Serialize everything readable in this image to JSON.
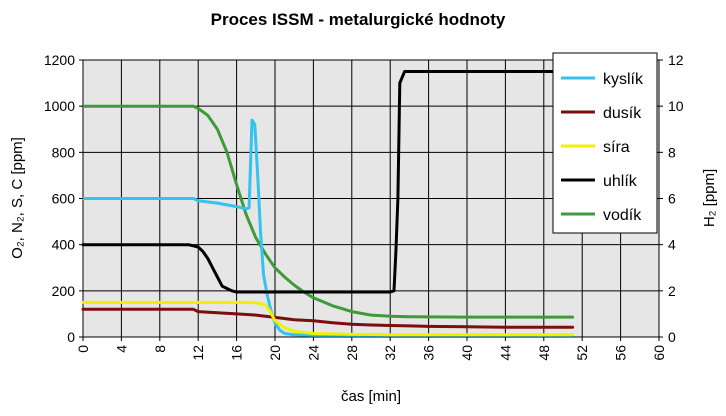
{
  "chart_data": {
    "type": "line",
    "title": "Proces ISSM - metalurgické hodnoty",
    "xlabel": "čas [min]",
    "ylabel": "O₂, N₂, S, C [ppm]",
    "y2label": "H₂ [ppm]",
    "xlim": [
      0,
      60
    ],
    "ylim": [
      0,
      1200
    ],
    "y2lim": [
      0,
      12
    ],
    "xticks": [
      "0",
      "4",
      "8",
      "12",
      "16",
      "20",
      "24",
      "28",
      "32",
      "36",
      "40",
      "44",
      "48",
      "52",
      "56",
      "60"
    ],
    "yticks": [
      "0",
      "200",
      "400",
      "600",
      "800",
      "1000",
      "1200"
    ],
    "y2ticks": [
      "0",
      "2",
      "4",
      "6",
      "8",
      "10",
      "12"
    ],
    "grid": true,
    "background": "#e6e6e6",
    "legend_position": "top-right",
    "series": [
      {
        "name": "kyslík",
        "color": "#33c3ee",
        "axis": "left",
        "x": [
          0,
          11.5,
          12,
          14,
          16,
          17,
          17.3,
          17.6,
          17.9,
          18.2,
          18.5,
          18.8,
          19.2,
          19.6,
          20,
          20.5,
          21,
          22,
          24,
          28,
          32,
          40,
          51
        ],
        "y": [
          600,
          600,
          590,
          580,
          565,
          555,
          560,
          940,
          920,
          700,
          450,
          270,
          180,
          110,
          60,
          30,
          15,
          10,
          8,
          8,
          8,
          8,
          8
        ]
      },
      {
        "name": "dusík",
        "color": "#7b0e0e",
        "axis": "left",
        "x": [
          0,
          11.5,
          12,
          14,
          16,
          18,
          20,
          22,
          24,
          26,
          28,
          30,
          32,
          34,
          36,
          40,
          44,
          51
        ],
        "y": [
          120,
          120,
          110,
          105,
          100,
          95,
          85,
          75,
          70,
          62,
          55,
          52,
          50,
          48,
          46,
          44,
          42,
          42
        ]
      },
      {
        "name": "síra",
        "color": "#f0f000",
        "axis": "left",
        "x": [
          0,
          11.5,
          12,
          17,
          18,
          19,
          19.5,
          20,
          21,
          22,
          24,
          28,
          32,
          40,
          51
        ],
        "y": [
          150,
          150,
          150,
          150,
          148,
          140,
          110,
          70,
          40,
          25,
          15,
          12,
          10,
          10,
          10
        ]
      },
      {
        "name": "uhlík",
        "color": "#000000",
        "axis": "left",
        "x": [
          0,
          11,
          12,
          12.5,
          13,
          13.5,
          14,
          14.5,
          15,
          15.5,
          16,
          18,
          20,
          24,
          28,
          32,
          32.4,
          32.6,
          32.8,
          33,
          33.5,
          34,
          40,
          44,
          48,
          51
        ],
        "y": [
          400,
          400,
          390,
          370,
          340,
          300,
          260,
          220,
          210,
          200,
          195,
          195,
          195,
          195,
          195,
          195,
          200,
          380,
          600,
          1100,
          1150,
          1150,
          1150,
          1150,
          1150,
          1150
        ]
      },
      {
        "name": "vodík",
        "color": "#3f9a3a",
        "axis": "right",
        "x": [
          0,
          11.5,
          12,
          13,
          14,
          15,
          16,
          17,
          18,
          19,
          20,
          21,
          22,
          23,
          24,
          26,
          28,
          30,
          32,
          34,
          36,
          40,
          44,
          48,
          51
        ],
        "y": [
          10,
          10,
          9.9,
          9.6,
          9.0,
          8.0,
          6.6,
          5.3,
          4.3,
          3.6,
          3.0,
          2.6,
          2.25,
          1.95,
          1.7,
          1.35,
          1.1,
          0.95,
          0.9,
          0.88,
          0.87,
          0.86,
          0.86,
          0.86,
          0.86
        ]
      }
    ]
  }
}
